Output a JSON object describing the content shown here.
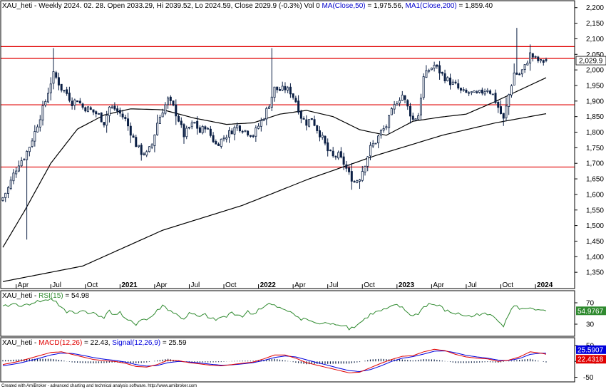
{
  "main": {
    "title": {
      "symbol": "XAU_heti",
      "rest": " - Weekly 2024. 02. 28. Open 2033.29, Hi 2039.52, Lo 2024.59, Close 2029.9 (-0.3%) Vol 0 ",
      "ma50_label": "MA(Close,50)",
      "ma50_value": " = 1,975.56, ",
      "ma200_label": "MA1(Close,200)",
      "ma200_value": " = 1,859.40"
    },
    "last_price_label": "2,029.9"
  },
  "rsi_panel": {
    "symbol": "XAU_heti",
    "label": "RSI(15)",
    "value_text": " = 54.98",
    "badge": "54.9767",
    "tick_70": "70",
    "tick_30": "30"
  },
  "macd_panel": {
    "symbol": "XAU_heti",
    "macd_label": "MACD(12,26)",
    "macd_value": " = 22.43, ",
    "signal_label": "Signal(12,26,9)",
    "signal_value": " = 25.59",
    "signal_badge": "25.5907",
    "macd_badge": "22.4318",
    "tick_50": "50",
    "tick_0": "0",
    "tick_neg50": "-50"
  },
  "footer": "Created with AmiBroker - advanced charting and technical analysis software. http://www.amibroker.com",
  "colors": {
    "candle": "#0b1f44",
    "ma": "#000000",
    "resistance": "#e00000",
    "rsi": "#2f8a2f",
    "macd": "#e00000",
    "signal": "#0000dd",
    "histogram": "#0b1f44",
    "label_blue": "#0000cc"
  },
  "chart_data": {
    "type": "candlestick",
    "timeframe": "Weekly",
    "symbol": "XAU_heti",
    "ylim": [
      1300,
      2220
    ],
    "yticks": [
      1350,
      1400,
      1450,
      1500,
      1550,
      1600,
      1650,
      1700,
      1750,
      1800,
      1850,
      1900,
      1950,
      2000,
      2050,
      2100,
      2150,
      2200
    ],
    "ytick_labels": [
      "1,350",
      "1,400",
      "1,450",
      "1,500",
      "1,550",
      "1,600",
      "1,650",
      "1,700",
      "1,750",
      "1,800",
      "1,850",
      "1,900",
      "1,950",
      "2,000",
      "2,050",
      "2,100",
      "2,150",
      "2,200"
    ],
    "xtick_labels": [
      {
        "week": 5,
        "label": "Apr",
        "bold": false
      },
      {
        "week": 18,
        "label": "Jul",
        "bold": false
      },
      {
        "week": 31,
        "label": "Oct",
        "bold": false
      },
      {
        "week": 44,
        "label": "2021",
        "bold": true
      },
      {
        "week": 57,
        "label": "Apr",
        "bold": false
      },
      {
        "week": 70,
        "label": "Jul",
        "bold": false
      },
      {
        "week": 83,
        "label": "Oct",
        "bold": false
      },
      {
        "week": 96,
        "label": "2022",
        "bold": true
      },
      {
        "week": 109,
        "label": "Apr",
        "bold": false
      },
      {
        "week": 122,
        "label": "Jul",
        "bold": false
      },
      {
        "week": 135,
        "label": "Oct",
        "bold": false
      },
      {
        "week": 148,
        "label": "2023",
        "bold": true
      },
      {
        "week": 161,
        "label": "Apr",
        "bold": false
      },
      {
        "week": 174,
        "label": "Jul",
        "bold": false
      },
      {
        "week": 187,
        "label": "Oct",
        "bold": false
      },
      {
        "week": 200,
        "label": "2024",
        "bold": true
      }
    ],
    "horizontal_levels": [
      2075,
      2037,
      1888,
      1688
    ],
    "ma50_anchors": [
      [
        0,
        1430
      ],
      [
        8,
        1545
      ],
      [
        18,
        1700
      ],
      [
        28,
        1810
      ],
      [
        38,
        1855
      ],
      [
        48,
        1875
      ],
      [
        60,
        1872
      ],
      [
        72,
        1845
      ],
      [
        84,
        1825
      ],
      [
        94,
        1830
      ],
      [
        104,
        1858
      ],
      [
        114,
        1870
      ],
      [
        124,
        1850
      ],
      [
        134,
        1808
      ],
      [
        144,
        1790
      ],
      [
        154,
        1835
      ],
      [
        164,
        1848
      ],
      [
        174,
        1858
      ],
      [
        184,
        1895
      ],
      [
        194,
        1935
      ],
      [
        204,
        1975
      ]
    ],
    "ma200_anchors": [
      [
        0,
        1320
      ],
      [
        30,
        1370
      ],
      [
        60,
        1485
      ],
      [
        90,
        1565
      ],
      [
        115,
        1650
      ],
      [
        140,
        1725
      ],
      [
        165,
        1790
      ],
      [
        185,
        1830
      ],
      [
        204,
        1859.4
      ]
    ],
    "close_anchors": [
      [
        0,
        1590
      ],
      [
        2,
        1620
      ],
      [
        4,
        1665
      ],
      [
        6,
        1700
      ],
      [
        8,
        1720
      ],
      [
        10,
        1755
      ],
      [
        12,
        1800
      ],
      [
        14,
        1850
      ],
      [
        16,
        1900
      ],
      [
        18,
        1960
      ],
      [
        19,
        1985
      ],
      [
        20,
        1975
      ],
      [
        22,
        1940
      ],
      [
        24,
        1925
      ],
      [
        26,
        1895
      ],
      [
        28,
        1905
      ],
      [
        30,
        1880
      ],
      [
        32,
        1875
      ],
      [
        34,
        1865
      ],
      [
        36,
        1855
      ],
      [
        38,
        1830
      ],
      [
        40,
        1880
      ],
      [
        42,
        1875
      ],
      [
        44,
        1860
      ],
      [
        46,
        1840
      ],
      [
        48,
        1800
      ],
      [
        50,
        1760
      ],
      [
        52,
        1735
      ],
      [
        54,
        1730
      ],
      [
        56,
        1760
      ],
      [
        58,
        1830
      ],
      [
        60,
        1870
      ],
      [
        62,
        1905
      ],
      [
        64,
        1880
      ],
      [
        66,
        1840
      ],
      [
        68,
        1790
      ],
      [
        70,
        1815
      ],
      [
        72,
        1830
      ],
      [
        74,
        1800
      ],
      [
        76,
        1820
      ],
      [
        78,
        1790
      ],
      [
        80,
        1760
      ],
      [
        82,
        1775
      ],
      [
        84,
        1790
      ],
      [
        86,
        1805
      ],
      [
        88,
        1820
      ],
      [
        90,
        1810
      ],
      [
        92,
        1800
      ],
      [
        94,
        1790
      ],
      [
        96,
        1820
      ],
      [
        98,
        1850
      ],
      [
        100,
        1890
      ],
      [
        102,
        1940
      ],
      [
        104,
        1935
      ],
      [
        106,
        1940
      ],
      [
        108,
        1930
      ],
      [
        110,
        1900
      ],
      [
        112,
        1850
      ],
      [
        114,
        1830
      ],
      [
        116,
        1845
      ],
      [
        118,
        1810
      ],
      [
        120,
        1780
      ],
      [
        122,
        1740
      ],
      [
        124,
        1720
      ],
      [
        126,
        1725
      ],
      [
        128,
        1700
      ],
      [
        130,
        1665
      ],
      [
        132,
        1640
      ],
      [
        134,
        1655
      ],
      [
        136,
        1700
      ],
      [
        138,
        1750
      ],
      [
        140,
        1770
      ],
      [
        142,
        1800
      ],
      [
        144,
        1820
      ],
      [
        146,
        1865
      ],
      [
        148,
        1900
      ],
      [
        150,
        1920
      ],
      [
        152,
        1880
      ],
      [
        154,
        1840
      ],
      [
        156,
        1855
      ],
      [
        158,
        1975
      ],
      [
        160,
        2000
      ],
      [
        162,
        2015
      ],
      [
        164,
        1995
      ],
      [
        166,
        1975
      ],
      [
        168,
        1960
      ],
      [
        170,
        1950
      ],
      [
        172,
        1930
      ],
      [
        174,
        1925
      ],
      [
        176,
        1925
      ],
      [
        178,
        1920
      ],
      [
        180,
        1930
      ],
      [
        182,
        1940
      ],
      [
        184,
        1920
      ],
      [
        186,
        1880
      ],
      [
        188,
        1840
      ],
      [
        190,
        1920
      ],
      [
        192,
        1990
      ],
      [
        194,
        1985
      ],
      [
        196,
        2010
      ],
      [
        198,
        2050
      ],
      [
        200,
        2035
      ],
      [
        202,
        2025
      ],
      [
        204,
        2029.9
      ]
    ],
    "ohlc_last": {
      "open": 2033.29,
      "high": 2039.52,
      "low": 2024.59,
      "close": 2029.9,
      "change_pct": -0.3
    },
    "rsi": {
      "period": 15,
      "last": 54.98,
      "levels": [
        30,
        70
      ],
      "anchors": [
        [
          0,
          62
        ],
        [
          4,
          68
        ],
        [
          8,
          64
        ],
        [
          12,
          72
        ],
        [
          16,
          74
        ],
        [
          18,
          78
        ],
        [
          20,
          72
        ],
        [
          22,
          60
        ],
        [
          24,
          52
        ],
        [
          26,
          55
        ],
        [
          28,
          50
        ],
        [
          30,
          58
        ],
        [
          32,
          48
        ],
        [
          34,
          52
        ],
        [
          36,
          47
        ],
        [
          38,
          43
        ],
        [
          40,
          54
        ],
        [
          42,
          48
        ],
        [
          44,
          52
        ],
        [
          46,
          38
        ],
        [
          48,
          35
        ],
        [
          50,
          30
        ],
        [
          52,
          40
        ],
        [
          54,
          38
        ],
        [
          56,
          45
        ],
        [
          58,
          55
        ],
        [
          60,
          65
        ],
        [
          62,
          58
        ],
        [
          64,
          52
        ],
        [
          66,
          45
        ],
        [
          68,
          40
        ],
        [
          70,
          50
        ],
        [
          72,
          47
        ],
        [
          74,
          43
        ],
        [
          76,
          48
        ],
        [
          78,
          40
        ],
        [
          80,
          38
        ],
        [
          82,
          43
        ],
        [
          84,
          44
        ],
        [
          86,
          52
        ],
        [
          88,
          48
        ],
        [
          90,
          45
        ],
        [
          92,
          53
        ],
        [
          94,
          48
        ],
        [
          96,
          58
        ],
        [
          98,
          62
        ],
        [
          100,
          68
        ],
        [
          102,
          64
        ],
        [
          104,
          60
        ],
        [
          106,
          55
        ],
        [
          108,
          54
        ],
        [
          110,
          48
        ],
        [
          112,
          38
        ],
        [
          114,
          40
        ],
        [
          116,
          35
        ],
        [
          118,
          30
        ],
        [
          120,
          32
        ],
        [
          122,
          30
        ],
        [
          124,
          33
        ],
        [
          126,
          28
        ],
        [
          128,
          30
        ],
        [
          130,
          22
        ],
        [
          132,
          25
        ],
        [
          134,
          32
        ],
        [
          136,
          40
        ],
        [
          138,
          48
        ],
        [
          140,
          52
        ],
        [
          142,
          55
        ],
        [
          144,
          58
        ],
        [
          146,
          62
        ],
        [
          148,
          66
        ],
        [
          150,
          60
        ],
        [
          152,
          52
        ],
        [
          154,
          45
        ],
        [
          156,
          50
        ],
        [
          158,
          62
        ],
        [
          160,
          68
        ],
        [
          162,
          66
        ],
        [
          164,
          64
        ],
        [
          166,
          56
        ],
        [
          168,
          52
        ],
        [
          170,
          50
        ],
        [
          172,
          48
        ],
        [
          174,
          46
        ],
        [
          176,
          44
        ],
        [
          178,
          48
        ],
        [
          180,
          50
        ],
        [
          182,
          47
        ],
        [
          184,
          45
        ],
        [
          186,
          38
        ],
        [
          188,
          28
        ],
        [
          190,
          50
        ],
        [
          192,
          64
        ],
        [
          194,
          60
        ],
        [
          196,
          57
        ],
        [
          198,
          62
        ],
        [
          200,
          58
        ],
        [
          202,
          54
        ],
        [
          204,
          54.98
        ]
      ]
    },
    "macd": {
      "params": [
        12,
        26,
        9
      ],
      "last_macd": 22.43,
      "last_signal": 25.59,
      "ylim": [
        -60,
        70
      ],
      "yticks": [
        50,
        0,
        -50
      ],
      "macd_anchors": [
        [
          0,
          -10
        ],
        [
          6,
          0
        ],
        [
          12,
          14
        ],
        [
          18,
          28
        ],
        [
          22,
          30
        ],
        [
          26,
          22
        ],
        [
          30,
          14
        ],
        [
          34,
          6
        ],
        [
          38,
          2
        ],
        [
          42,
          0
        ],
        [
          46,
          -6
        ],
        [
          50,
          -16
        ],
        [
          54,
          -18
        ],
        [
          58,
          -10
        ],
        [
          62,
          4
        ],
        [
          66,
          2
        ],
        [
          70,
          -4
        ],
        [
          74,
          -8
        ],
        [
          78,
          -12
        ],
        [
          82,
          -14
        ],
        [
          86,
          -10
        ],
        [
          90,
          -6
        ],
        [
          94,
          -2
        ],
        [
          98,
          8
        ],
        [
          102,
          20
        ],
        [
          106,
          20
        ],
        [
          110,
          10
        ],
        [
          114,
          -4
        ],
        [
          118,
          -12
        ],
        [
          122,
          -20
        ],
        [
          126,
          -28
        ],
        [
          130,
          -36
        ],
        [
          134,
          -34
        ],
        [
          138,
          -20
        ],
        [
          142,
          -6
        ],
        [
          146,
          6
        ],
        [
          150,
          16
        ],
        [
          154,
          18
        ],
        [
          158,
          30
        ],
        [
          162,
          38
        ],
        [
          166,
          34
        ],
        [
          170,
          22
        ],
        [
          174,
          14
        ],
        [
          178,
          10
        ],
        [
          182,
          8
        ],
        [
          186,
          0
        ],
        [
          190,
          4
        ],
        [
          194,
          14
        ],
        [
          198,
          30
        ],
        [
          202,
          26
        ],
        [
          204,
          22.43
        ]
      ],
      "signal_anchors": [
        [
          0,
          -14
        ],
        [
          6,
          -6
        ],
        [
          12,
          6
        ],
        [
          18,
          20
        ],
        [
          22,
          26
        ],
        [
          26,
          25
        ],
        [
          30,
          19
        ],
        [
          34,
          12
        ],
        [
          38,
          7
        ],
        [
          42,
          3
        ],
        [
          46,
          -2
        ],
        [
          50,
          -10
        ],
        [
          54,
          -15
        ],
        [
          58,
          -13
        ],
        [
          62,
          -4
        ],
        [
          66,
          0
        ],
        [
          70,
          -2
        ],
        [
          74,
          -5
        ],
        [
          78,
          -9
        ],
        [
          82,
          -12
        ],
        [
          86,
          -11
        ],
        [
          90,
          -8
        ],
        [
          94,
          -4
        ],
        [
          98,
          3
        ],
        [
          102,
          12
        ],
        [
          106,
          17
        ],
        [
          110,
          14
        ],
        [
          114,
          5
        ],
        [
          118,
          -4
        ],
        [
          122,
          -12
        ],
        [
          126,
          -21
        ],
        [
          130,
          -29
        ],
        [
          134,
          -32
        ],
        [
          138,
          -26
        ],
        [
          142,
          -14
        ],
        [
          146,
          0
        ],
        [
          150,
          10
        ],
        [
          154,
          15
        ],
        [
          158,
          23
        ],
        [
          162,
          32
        ],
        [
          166,
          33
        ],
        [
          170,
          27
        ],
        [
          174,
          19
        ],
        [
          178,
          14
        ],
        [
          182,
          10
        ],
        [
          186,
          4
        ],
        [
          190,
          3
        ],
        [
          194,
          9
        ],
        [
          198,
          22
        ],
        [
          202,
          26
        ],
        [
          204,
          25.59
        ]
      ]
    }
  }
}
